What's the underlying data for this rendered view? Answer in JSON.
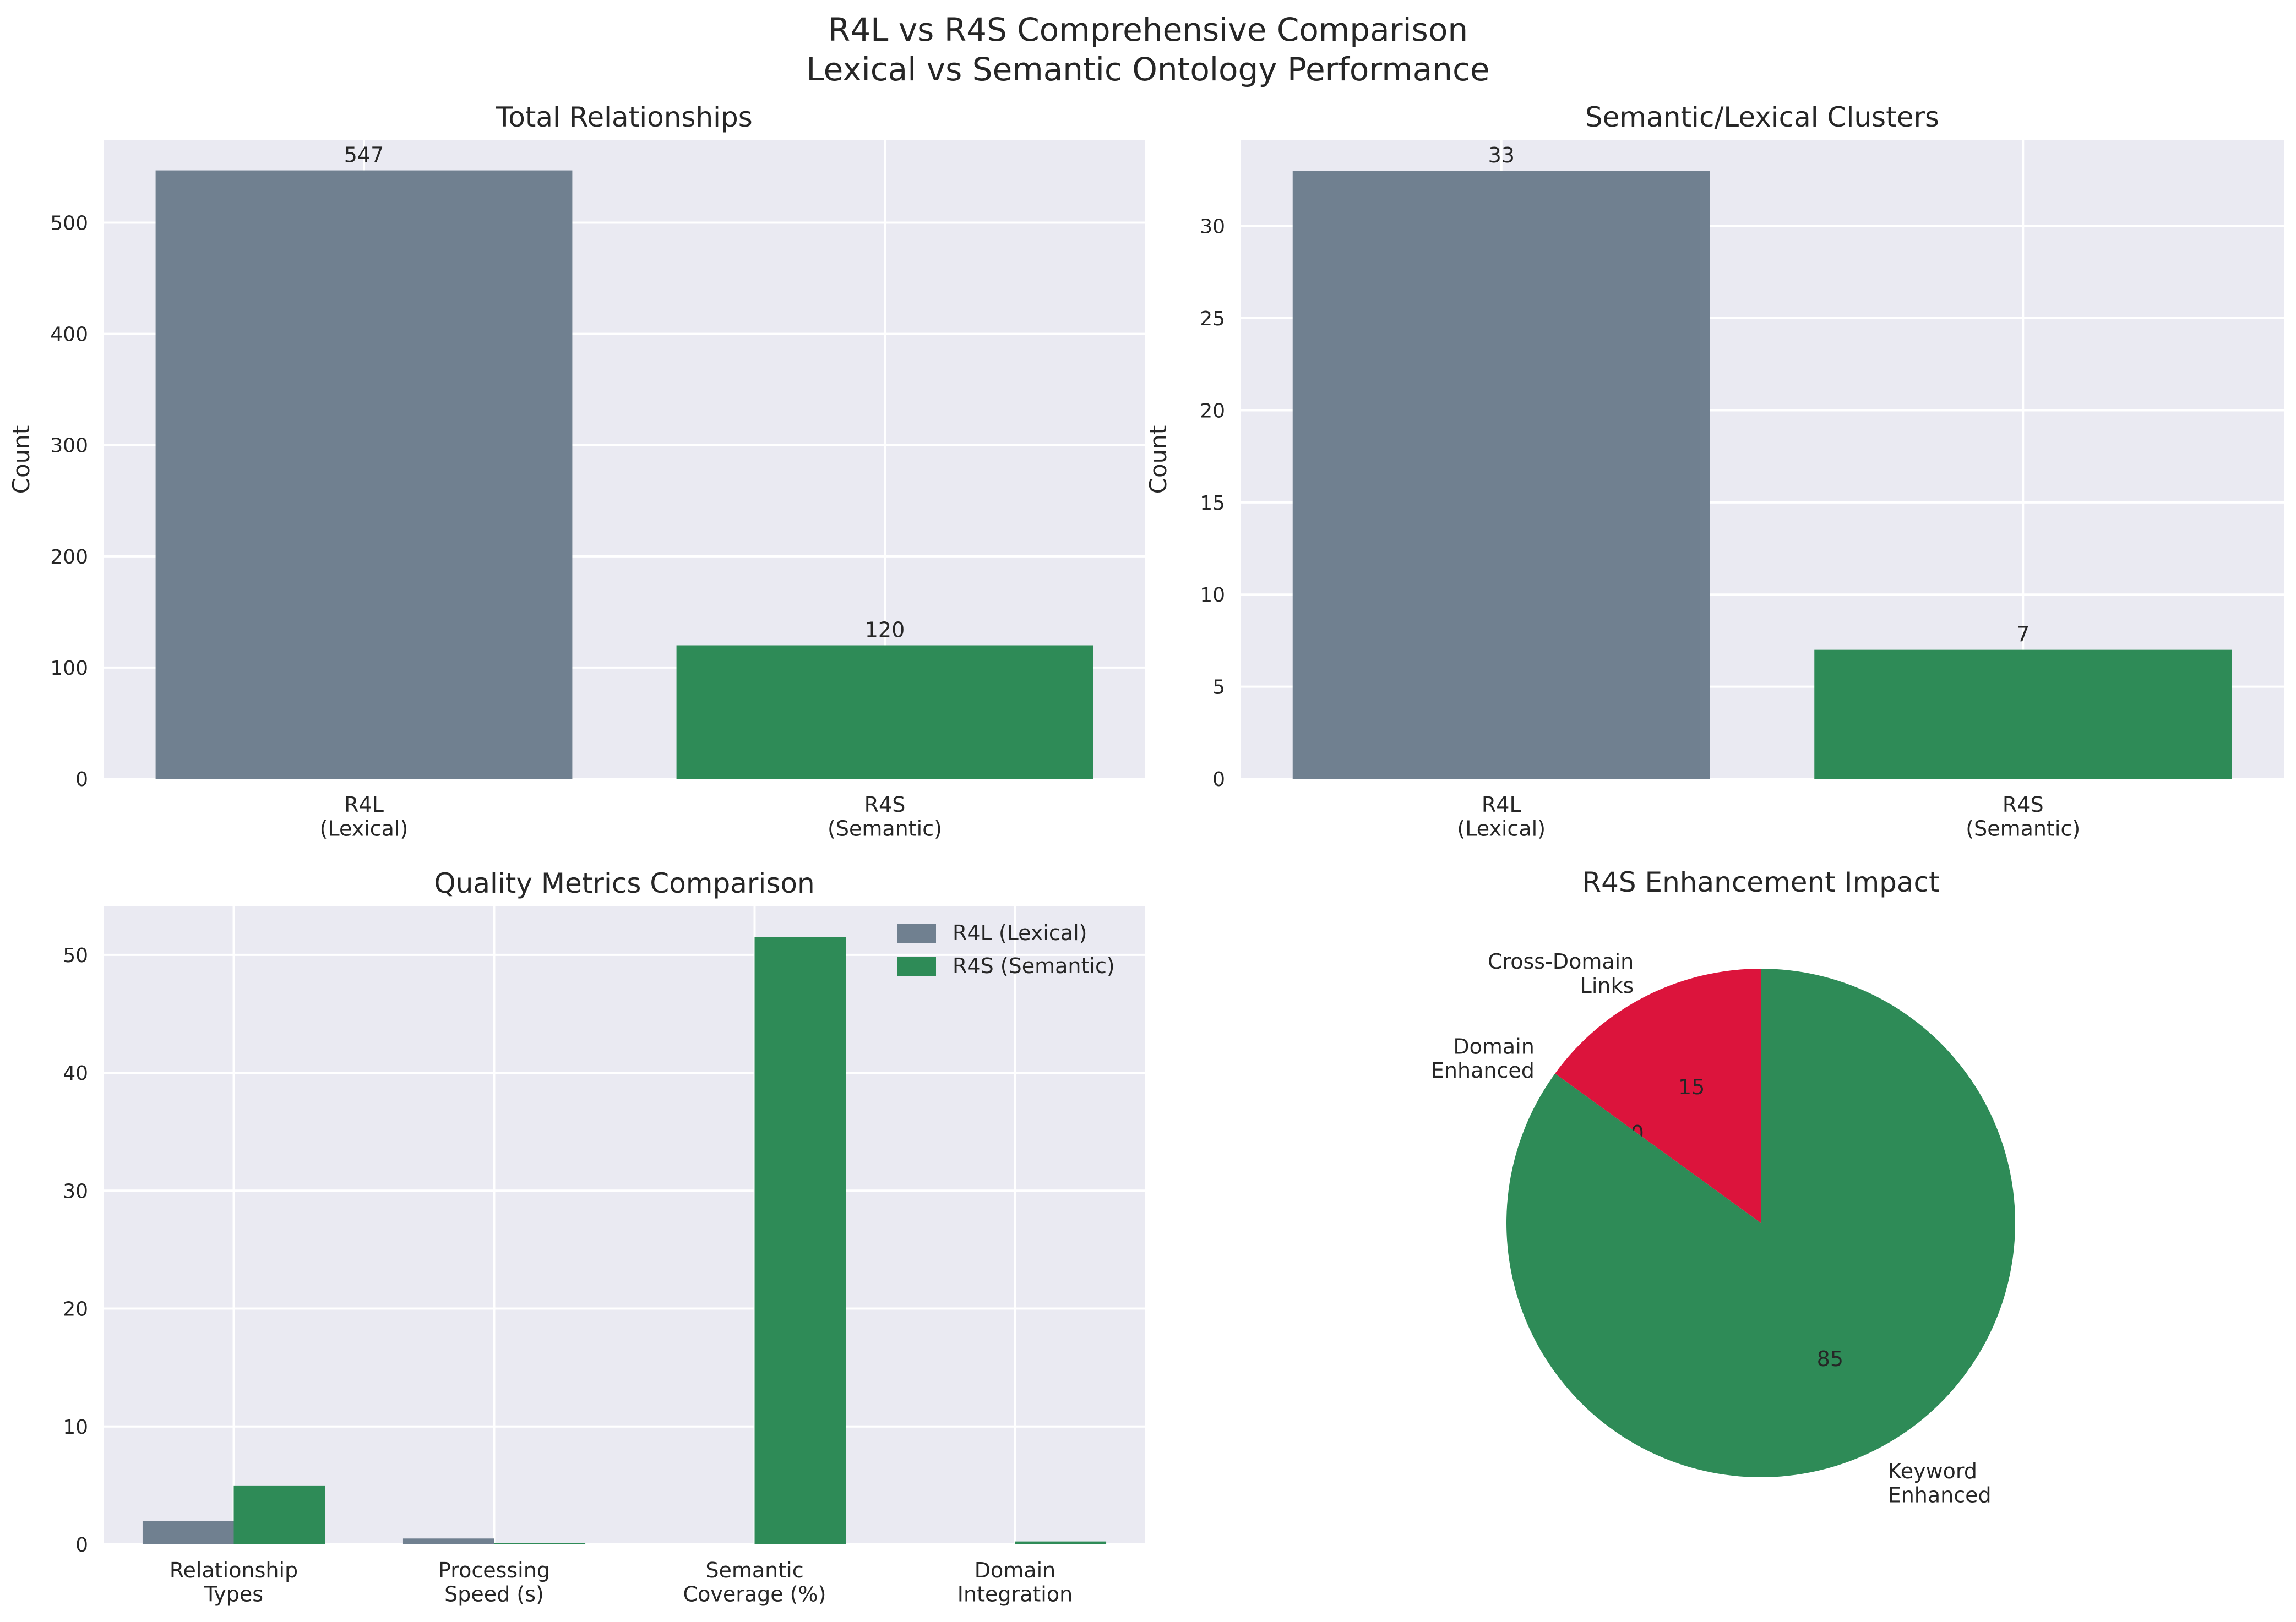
{
  "figure": {
    "title_line1": "R4L vs R4S Comprehensive Comparison",
    "title_line2": "Lexical vs Semantic Ontology Performance"
  },
  "colors": {
    "r4l": "#708090",
    "r4s": "#2e8b57",
    "crimson": "#dc143c",
    "panel_bg": "#eaeaf2",
    "grid": "#ffffff",
    "text": "#262626"
  },
  "chart_data": [
    {
      "type": "bar",
      "title": "Total Relationships",
      "ylabel": "Count",
      "categories": [
        "R4L\n(Lexical)",
        "R4S\n(Semantic)"
      ],
      "values": [
        547,
        120
      ],
      "data_labels": [
        "547",
        "120"
      ],
      "ylim": [
        0,
        574
      ],
      "yticks": [
        0,
        100,
        200,
        300,
        400,
        500
      ],
      "grid": true
    },
    {
      "type": "bar",
      "title": "Semantic/Lexical Clusters",
      "ylabel": "Count",
      "categories": [
        "R4L\n(Lexical)",
        "R4S\n(Semantic)"
      ],
      "values": [
        33,
        7
      ],
      "data_labels": [
        "33",
        "7"
      ],
      "ylim": [
        0,
        34.65
      ],
      "yticks": [
        0,
        5,
        10,
        15,
        20,
        25,
        30
      ],
      "grid": true
    },
    {
      "type": "bar",
      "title": "Quality Metrics Comparison",
      "categories": [
        "Relationship\nTypes",
        "Processing\nSpeed (s)",
        "Semantic\nCoverage (%)",
        "Domain\nIntegration"
      ],
      "series": [
        {
          "name": "R4L (Lexical)",
          "values": [
            2,
            0.5,
            0,
            0
          ]
        },
        {
          "name": "R4S (Semantic)",
          "values": [
            5,
            0.1,
            51.5,
            0.25
          ]
        }
      ],
      "ylim": [
        0,
        54.1
      ],
      "yticks": [
        0,
        10,
        20,
        30,
        40,
        50
      ],
      "legend": "top-right",
      "grid": true
    },
    {
      "type": "pie",
      "title": "R4S Enhancement Impact",
      "slices": [
        {
          "label": "Cross-Domain\nLinks",
          "value": 15,
          "display": "15"
        },
        {
          "label": "Domain\nEnhanced",
          "value": 0,
          "display": "0"
        },
        {
          "label": "Keyword\nEnhanced",
          "value": 85,
          "display": "85"
        }
      ],
      "start_angle_deg": 90
    }
  ]
}
